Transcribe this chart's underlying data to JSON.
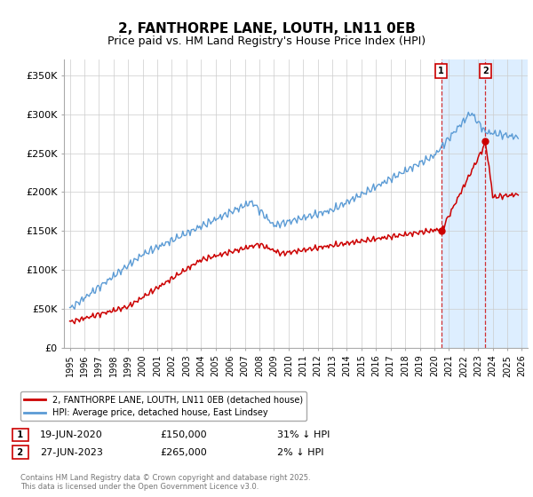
{
  "title": "2, FANTHORPE LANE, LOUTH, LN11 0EB",
  "subtitle": "Price paid vs. HM Land Registry's House Price Index (HPI)",
  "title_fontsize": 11,
  "subtitle_fontsize": 9,
  "ylabel_ticks": [
    "£0",
    "£50K",
    "£100K",
    "£150K",
    "£200K",
    "£250K",
    "£300K",
    "£350K"
  ],
  "ytick_values": [
    0,
    50000,
    100000,
    150000,
    200000,
    250000,
    300000,
    350000
  ],
  "ylim": [
    0,
    370000
  ],
  "xlim_start": 1994.6,
  "xlim_end": 2026.4,
  "hpi_color": "#5b9bd5",
  "price_color": "#cc0000",
  "shade_color": "#ddeeff",
  "marker1_date": 2020.47,
  "marker2_date": 2023.49,
  "marker1_price": 150000,
  "marker2_price": 265000,
  "legend_label_price": "2, FANTHORPE LANE, LOUTH, LN11 0EB (detached house)",
  "legend_label_hpi": "HPI: Average price, detached house, East Lindsey",
  "footer": "Contains HM Land Registry data © Crown copyright and database right 2025.\nThis data is licensed under the Open Government Licence v3.0.",
  "background_color": "#ffffff",
  "grid_color": "#cccccc"
}
